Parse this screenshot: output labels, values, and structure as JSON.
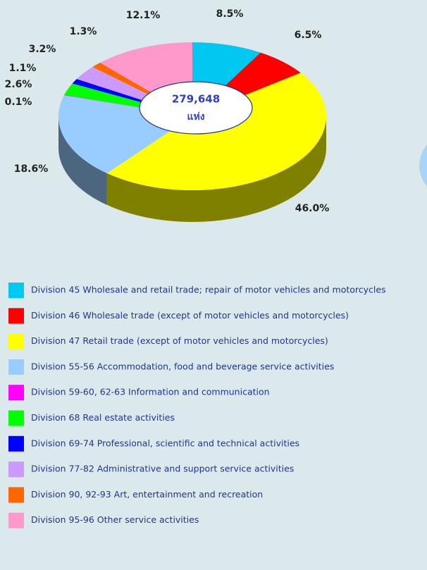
{
  "chart_data": {
    "type": "pie",
    "categories": [
      "Division 45 Wholesale and retail trade; repair of motor vehicles and motorcycles",
      "Division 46 Wholesale trade (except of motor vehicles and motorcycles)",
      "Division 47 Retail trade (except of motor vehicles and motorcycles)",
      "Division 55-56 Accommodation, food and beverage service activities",
      "Division 59-60, 62-63 Information and communication",
      "Division 68 Real estate activities",
      "Division 69-74 Professional, scientific and technical activities",
      "Division 77-82 Administrative and support service activities",
      "Division 90, 92-93 Art, entertainment and recreation",
      "Division 95-96 Other service activities"
    ],
    "values": [
      8.5,
      6.5,
      46.0,
      18.6,
      0.1,
      2.6,
      1.1,
      3.2,
      1.3,
      12.1
    ],
    "value_labels": [
      "8.5%",
      "6.5%",
      "46.0%",
      "18.6%",
      "0.1%",
      "2.6%",
      "1.1%",
      "3.2%",
      "1.3%",
      "12.1%"
    ],
    "colors": [
      "#00c8f0",
      "#ff0000",
      "#ffff00",
      "#99ccff",
      "#ff00ff",
      "#00ff00",
      "#0000ff",
      "#cc99ff",
      "#ff6600",
      "#ff99cc"
    ],
    "annotations": [
      "279,648",
      "แห่ง"
    ]
  }
}
